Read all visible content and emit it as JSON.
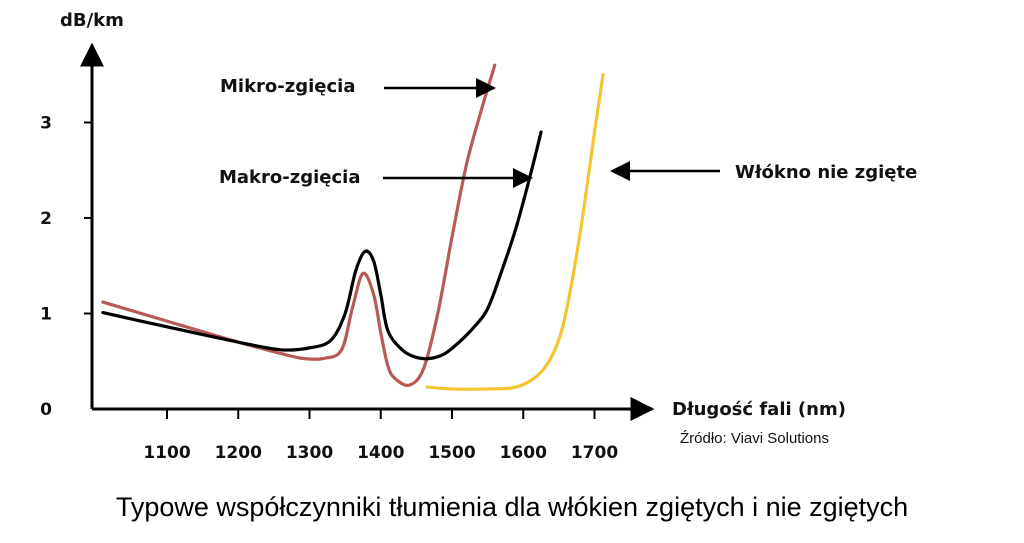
{
  "caption": "Typowe współczynniki tłumienia dla włókien zgiętych i nie zgiętych",
  "source": "Źródło: Viavi Solutions",
  "chart_data": {
    "type": "line",
    "xlabel": "Długość fali (nm)",
    "ylabel": "dB/km",
    "xlim": [
      1000,
      1760
    ],
    "ylim": [
      0,
      3.6
    ],
    "x_ticks": [
      "1100",
      "1200",
      "1300",
      "1400",
      "1500",
      "1600",
      "1700"
    ],
    "y_ticks": [
      "0",
      "1",
      "2",
      "3"
    ],
    "grid": false,
    "legend": "none",
    "series": [
      {
        "name": "Makro-zgięcia",
        "color": "#000000",
        "x": [
          1010,
          1100,
          1200,
          1260,
          1300,
          1330,
          1350,
          1365,
          1378,
          1390,
          1400,
          1410,
          1430,
          1450,
          1470,
          1490,
          1510,
          1530,
          1550,
          1570,
          1590,
          1610,
          1625
        ],
        "y": [
          1.01,
          0.86,
          0.7,
          0.62,
          0.64,
          0.72,
          1.0,
          1.45,
          1.65,
          1.55,
          1.2,
          0.82,
          0.62,
          0.54,
          0.53,
          0.58,
          0.7,
          0.85,
          1.05,
          1.45,
          1.9,
          2.45,
          2.9
        ]
      },
      {
        "name": "Mikro-zgięcia",
        "color": "#b85a58",
        "x": [
          1010,
          1100,
          1200,
          1250,
          1290,
          1320,
          1345,
          1360,
          1375,
          1390,
          1400,
          1410,
          1420,
          1440,
          1460,
          1480,
          1500,
          1520,
          1540,
          1560
        ],
        "y": [
          1.12,
          0.92,
          0.7,
          0.6,
          0.53,
          0.53,
          0.62,
          1.05,
          1.42,
          1.2,
          0.8,
          0.45,
          0.32,
          0.25,
          0.42,
          1.0,
          1.8,
          2.55,
          3.1,
          3.6
        ]
      },
      {
        "name": "Włókno nie zgięte",
        "color": "#f2c531",
        "x": [
          1465,
          1500,
          1550,
          1590,
          1620,
          1640,
          1655,
          1670,
          1685,
          1700,
          1712
        ],
        "y": [
          0.23,
          0.21,
          0.21,
          0.23,
          0.35,
          0.55,
          0.85,
          1.4,
          2.1,
          2.9,
          3.5
        ]
      }
    ],
    "annotations": [
      {
        "text": "Mikro-zgięcia",
        "series": 1
      },
      {
        "text": "Makro-zgięcia",
        "series": 0
      },
      {
        "text": "Włókno nie zgięte",
        "series": 2
      }
    ]
  }
}
